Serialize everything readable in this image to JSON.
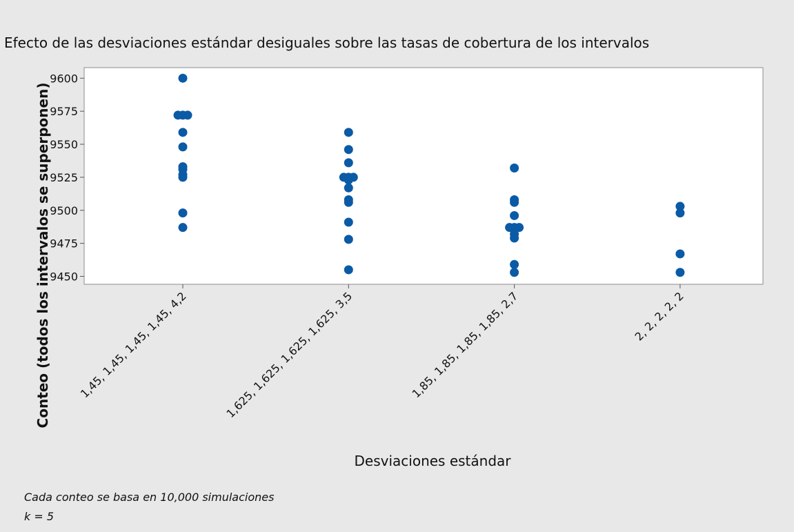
{
  "chart_data": {
    "type": "scatter",
    "title": "Efecto de las desviaciones estándar desiguales sobre las tasas de cobertura de los intervalos",
    "y_label": "Conteo (todos los intervalos se superponen)",
    "x_label": "Desviaciones estándar",
    "notes": [
      "Cada conteo se basa en 10,000 simulaciones",
      "k = 5"
    ],
    "categories": [
      "1,45, 1,45, 1,45, 1,45, 4,2",
      "1,625, 1,625, 1,625, 1,625, 3,5",
      "1,85, 1,85, 1,85, 1,85, 2,7",
      "2, 2, 2, 2, 2"
    ],
    "values": [
      [
        9600,
        9572,
        9572,
        9572,
        9559,
        9548,
        9533,
        9531,
        9527,
        9525,
        9498,
        9487
      ],
      [
        9559,
        9546,
        9536,
        9525,
        9525,
        9525,
        9523,
        9517,
        9508,
        9506,
        9491,
        9478,
        9455
      ],
      [
        9532,
        9508,
        9506,
        9496,
        9487,
        9487,
        9487,
        9482,
        9479,
        9459,
        9453
      ],
      [
        9503,
        9498,
        9467,
        9453
      ]
    ],
    "color": "#0b5aa6",
    "ylim": [
      9444,
      9608
    ],
    "yticks": [
      9450,
      9475,
      9500,
      9525,
      9550,
      9575,
      9600
    ]
  }
}
